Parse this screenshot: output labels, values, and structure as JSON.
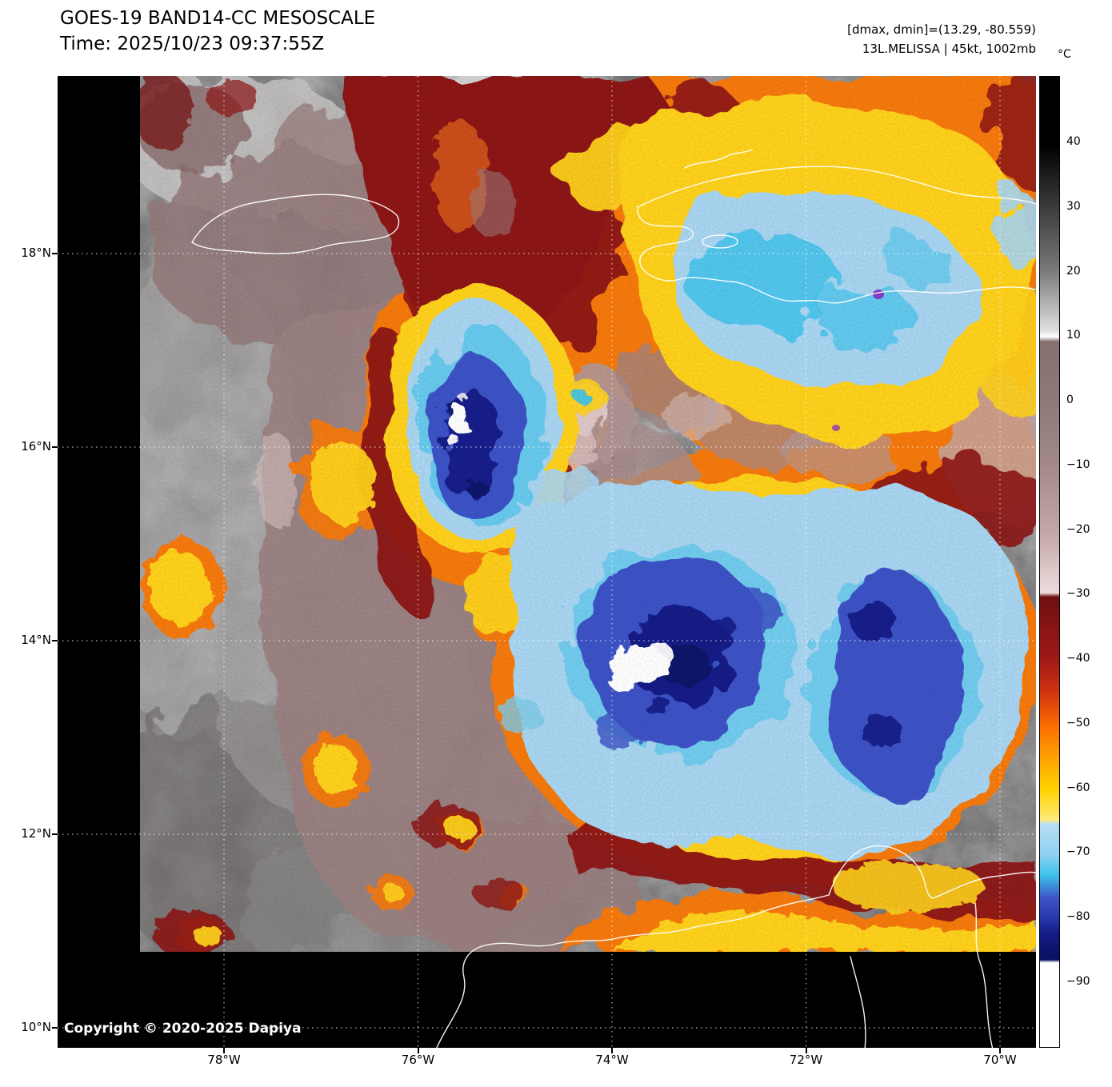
{
  "header": {
    "title": "GOES-19 BAND14-CC MESOSCALE",
    "time": "Time: 2025/10/23 09:37:55Z",
    "range": "[dmax, dmin]=(13.29, -80.559)",
    "storm": "13L.MELISSA | 45kt, 1002mb"
  },
  "colorbar": {
    "unit": "°C",
    "ticks": [
      "40",
      "30",
      "20",
      "10",
      "0",
      "−10",
      "−20",
      "−30",
      "−40",
      "−50",
      "−60",
      "−70",
      "−80",
      "−90"
    ],
    "range_top_c": 50,
    "range_bottom_c": -100
  },
  "axes": {
    "lat_labels": [
      "18°N",
      "16°N",
      "14°N",
      "12°N",
      "10°N"
    ],
    "lon_labels": [
      "78°W",
      "76°W",
      "74°W",
      "72°W",
      "70°W"
    ]
  },
  "footer": {
    "copyright": "Copyright © 2020-2025 Dapiya"
  },
  "palette": {
    "background": "#000000",
    "warm_cloud_gray": "#8e8c8c",
    "mauve": "#9c8181",
    "pale_pink": "#eddbdb",
    "dark_red": "#8d1313",
    "orange": "#f67a08",
    "yellow": "#ffd21e",
    "light_blue": "#a9d6f2",
    "cyan": "#3ec3ec",
    "royal_blue": "#3c52c6",
    "navy": "#141d87",
    "coldest_white": "#ffffff",
    "coastline": "#ffffff",
    "gridline": "#ffffff"
  }
}
